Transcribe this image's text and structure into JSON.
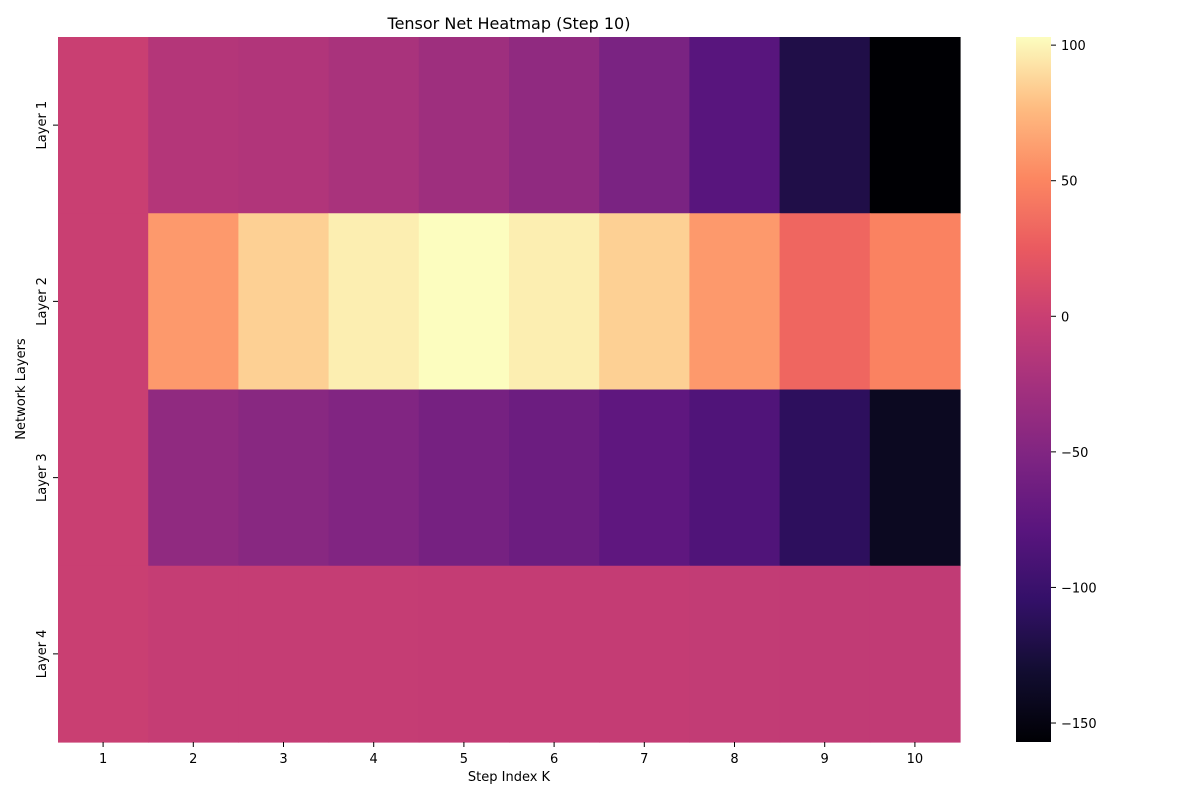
{
  "chart_data": {
    "type": "heatmap",
    "title": "Tensor Net Heatmap (Step 10)",
    "xlabel": "Step Index K",
    "ylabel": "Network Layers",
    "x_categories": [
      "1",
      "2",
      "3",
      "4",
      "5",
      "6",
      "7",
      "8",
      "9",
      "10"
    ],
    "y_categories": [
      "Layer 1",
      "Layer 2",
      "Layer 3",
      "Layer 4"
    ],
    "colormap": "magma",
    "vmin": -157,
    "vmax": 103,
    "colorbar_ticks": [
      100,
      50,
      0,
      -50,
      -100,
      -150
    ],
    "colorbar_tick_labels": [
      "100",
      "50",
      "0",
      "−50",
      "−100",
      "−150"
    ],
    "values": [
      [
        0,
        -15,
        -17,
        -22,
        -30,
        -40,
        -55,
        -80,
        -120,
        -157
      ],
      [
        0,
        60,
        85,
        97,
        103,
        97,
        85,
        60,
        32,
        48
      ],
      [
        0,
        -40,
        -45,
        -50,
        -58,
        -65,
        -75,
        -85,
        -110,
        -140
      ],
      [
        0,
        -3,
        -3,
        -3,
        -4,
        -4,
        -4,
        -5,
        -6,
        -6
      ]
    ]
  }
}
